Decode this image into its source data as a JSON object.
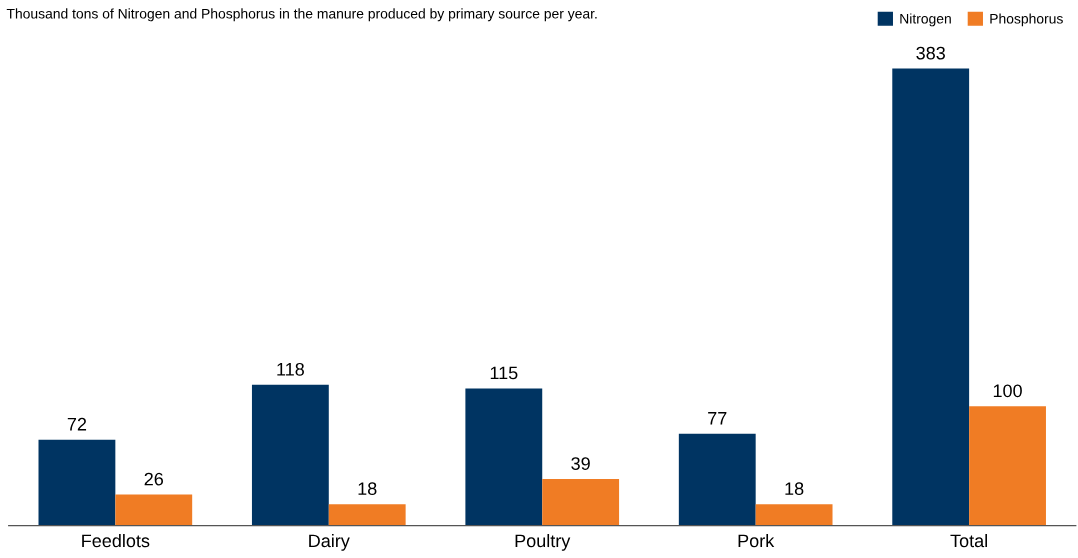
{
  "chart_data": {
    "type": "bar",
    "title": "Thousand tons of Nitrogen and Phosphorus in the manure produced by primary source per year.",
    "categories": [
      "Feedlots",
      "Dairy",
      "Poultry",
      "Pork",
      "Total"
    ],
    "series": [
      {
        "name": "Nitrogen",
        "color": "#003462",
        "values": [
          72,
          118,
          115,
          77,
          383
        ]
      },
      {
        "name": "Phosphorus",
        "color": "#f07c24",
        "values": [
          26,
          18,
          39,
          18,
          100
        ]
      }
    ],
    "data_labels": true,
    "grid": false,
    "legend": "top right"
  }
}
